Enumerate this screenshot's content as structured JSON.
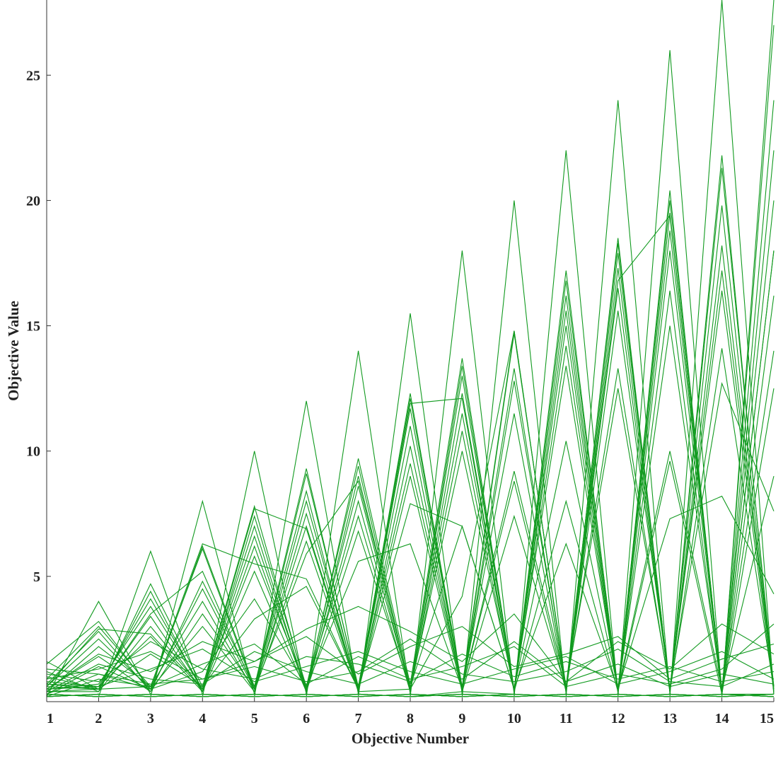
{
  "chart_data": {
    "type": "line",
    "title": "",
    "xlabel": "Objective Number",
    "ylabel": "Objective Value",
    "x": [
      1,
      2,
      3,
      4,
      5,
      6,
      7,
      8,
      9,
      10,
      11,
      12,
      13,
      14,
      15
    ],
    "xticks": [
      "1",
      "2",
      "3",
      "4",
      "5",
      "6",
      "7",
      "8",
      "9",
      "10",
      "11",
      "12",
      "13",
      "14",
      "15"
    ],
    "yticks": [
      "5",
      "10",
      "15",
      "20",
      "25"
    ],
    "ytick_values": [
      5,
      10,
      15,
      20,
      25
    ],
    "xlim": [
      1,
      15
    ],
    "ylim": [
      0,
      28
    ],
    "grid": false,
    "legend": "none",
    "line_color": "#119a1f",
    "series": [
      {
        "values": [
          0.2,
          4.0,
          0.3,
          0.2,
          0.3,
          0.2,
          0.3,
          0.2,
          0.4,
          0.3,
          0.2,
          0.3,
          0.2,
          0.3,
          0.2
        ]
      },
      {
        "values": [
          0.3,
          0.2,
          6.0,
          0.3,
          0.2,
          0.3,
          0.2,
          0.3,
          0.2,
          0.3,
          0.2,
          0.3,
          0.2,
          0.3,
          0.3
        ]
      },
      {
        "values": [
          0.2,
          0.3,
          0.2,
          8.0,
          0.3,
          0.2,
          0.3,
          0.2,
          0.3,
          0.2,
          0.3,
          0.2,
          0.3,
          0.2,
          0.3
        ]
      },
      {
        "values": [
          0.3,
          0.2,
          0.3,
          0.2,
          10.0,
          0.3,
          0.2,
          0.3,
          0.2,
          0.3,
          0.2,
          0.3,
          0.2,
          0.3,
          0.2
        ]
      },
      {
        "values": [
          0.2,
          0.3,
          0.2,
          0.3,
          0.2,
          12.0,
          0.3,
          0.2,
          0.3,
          0.2,
          0.3,
          0.2,
          0.3,
          0.2,
          0.3
        ]
      },
      {
        "values": [
          0.3,
          0.2,
          0.3,
          0.2,
          0.3,
          0.2,
          14.0,
          0.3,
          0.2,
          0.3,
          0.2,
          0.3,
          0.2,
          0.3,
          0.2
        ]
      },
      {
        "values": [
          0.2,
          0.3,
          0.2,
          0.3,
          0.2,
          0.3,
          0.2,
          15.5,
          0.3,
          0.2,
          0.3,
          0.2,
          0.3,
          0.2,
          0.3
        ]
      },
      {
        "values": [
          0.3,
          0.2,
          0.3,
          0.2,
          0.3,
          0.2,
          0.3,
          0.2,
          18.0,
          0.3,
          0.2,
          0.3,
          0.2,
          0.3,
          0.2
        ]
      },
      {
        "values": [
          0.2,
          0.3,
          0.2,
          0.3,
          0.2,
          0.3,
          0.2,
          0.3,
          0.2,
          20.0,
          0.3,
          0.2,
          0.3,
          0.2,
          0.3
        ]
      },
      {
        "values": [
          0.3,
          0.2,
          0.3,
          0.2,
          0.3,
          0.2,
          0.3,
          0.2,
          0.3,
          0.2,
          22.0,
          0.3,
          0.2,
          0.3,
          0.2
        ]
      },
      {
        "values": [
          0.2,
          0.3,
          0.2,
          0.3,
          0.2,
          0.3,
          0.2,
          0.3,
          0.2,
          0.3,
          0.2,
          24.0,
          0.3,
          0.2,
          0.3
        ]
      },
      {
        "values": [
          0.3,
          0.2,
          0.3,
          0.2,
          0.3,
          0.2,
          0.3,
          0.2,
          0.3,
          0.2,
          0.3,
          0.2,
          26.0,
          0.3,
          0.2
        ]
      },
      {
        "values": [
          0.2,
          0.3,
          0.2,
          0.3,
          0.2,
          0.3,
          0.2,
          0.3,
          0.2,
          0.3,
          0.2,
          0.3,
          0.2,
          28.0,
          0.3
        ]
      },
      {
        "values": [
          0.3,
          0.2,
          0.3,
          0.2,
          0.3,
          0.2,
          0.3,
          0.2,
          0.3,
          0.2,
          0.3,
          0.2,
          0.3,
          0.2,
          28.0
        ]
      },
      {
        "values": [
          1.5,
          3.2,
          0.5,
          6.2,
          0.6,
          9.3,
          0.5,
          12.3,
          0.6,
          14.8,
          0.5,
          18.5,
          0.4,
          21.8,
          0.3
        ]
      },
      {
        "values": [
          1.2,
          0.4,
          4.7,
          0.6,
          7.8,
          0.5,
          9.7,
          0.7,
          13.7,
          0.5,
          17.2,
          0.4,
          20.4,
          0.3,
          27.0
        ]
      },
      {
        "values": [
          0.9,
          3.0,
          0.6,
          6.1,
          0.5,
          9.1,
          0.6,
          12.1,
          0.5,
          14.7,
          0.6,
          18.3,
          0.4,
          21.3,
          0.6
        ]
      },
      {
        "values": [
          1.0,
          0.5,
          4.4,
          0.4,
          7.4,
          0.6,
          9.4,
          0.5,
          13.4,
          0.4,
          16.8,
          0.5,
          20.0,
          0.4,
          24.0
        ]
      },
      {
        "values": [
          0.7,
          2.8,
          0.4,
          4.8,
          0.6,
          8.4,
          0.4,
          11.7,
          0.5,
          13.3,
          0.4,
          17.9,
          0.5,
          19.8,
          0.4
        ]
      },
      {
        "values": [
          0.8,
          0.6,
          4.1,
          0.5,
          7.0,
          0.4,
          9.0,
          0.5,
          13.0,
          0.5,
          16.2,
          0.4,
          19.5,
          0.3,
          22.0
        ]
      },
      {
        "values": [
          0.6,
          2.5,
          0.5,
          4.5,
          0.5,
          8.0,
          0.5,
          11.0,
          0.4,
          12.8,
          0.5,
          17.3,
          0.4,
          18.2,
          0.5
        ]
      },
      {
        "values": [
          0.5,
          0.7,
          3.8,
          0.5,
          6.6,
          0.5,
          8.6,
          0.4,
          12.3,
          0.4,
          15.6,
          0.5,
          18.8,
          0.5,
          20.0
        ]
      },
      {
        "values": [
          0.4,
          2.2,
          0.6,
          4.0,
          0.4,
          7.5,
          0.4,
          10.2,
          0.5,
          11.5,
          0.4,
          16.5,
          0.4,
          17.2,
          0.6
        ]
      },
      {
        "values": [
          0.6,
          0.5,
          3.4,
          0.4,
          6.2,
          0.4,
          8.0,
          0.5,
          11.5,
          0.5,
          15.0,
          0.4,
          18.0,
          0.4,
          18.0
        ]
      },
      {
        "values": [
          0.5,
          1.8,
          0.4,
          3.5,
          0.5,
          7.0,
          0.5,
          9.5,
          0.5,
          8.8,
          0.4,
          15.6,
          0.5,
          16.4,
          0.4
        ]
      },
      {
        "values": [
          0.4,
          0.4,
          3.0,
          0.5,
          5.8,
          0.6,
          7.4,
          0.4,
          10.8,
          0.4,
          14.2,
          0.4,
          16.4,
          0.3,
          16.2
        ]
      },
      {
        "values": [
          0.3,
          1.4,
          0.5,
          3.0,
          0.4,
          6.4,
          0.4,
          9.0,
          0.4,
          7.4,
          0.5,
          13.3,
          0.4,
          14.1,
          0.5
        ]
      },
      {
        "values": [
          0.5,
          0.6,
          2.6,
          0.4,
          5.2,
          0.4,
          6.8,
          0.5,
          10.0,
          0.5,
          13.4,
          0.4,
          15.0,
          0.4,
          14.0
        ]
      },
      {
        "values": [
          1.6,
          0.5,
          0.6,
          6.3,
          5.5,
          4.9,
          0.5,
          11.9,
          12.1,
          0.4,
          8.0,
          0.4,
          9.6,
          0.3,
          12.5
        ]
      },
      {
        "values": [
          0.6,
          2.9,
          2.7,
          0.5,
          7.7,
          6.9,
          0.4,
          0.5,
          4.2,
          14.8,
          0.5,
          16.8,
          19.4,
          0.5,
          9.0
        ]
      },
      {
        "values": [
          0.4,
          0.5,
          3.5,
          5.2,
          0.5,
          5.9,
          8.8,
          0.6,
          7.0,
          0.5,
          10.4,
          0.5,
          7.3,
          8.2,
          4.3
        ]
      },
      {
        "values": [
          0.3,
          1.1,
          0.5,
          1.2,
          4.1,
          0.6,
          5.6,
          6.3,
          0.5,
          9.2,
          0.6,
          12.5,
          0.5,
          12.7,
          7.6
        ]
      },
      {
        "values": [
          0.7,
          0.5,
          1.9,
          0.6,
          3.3,
          4.6,
          0.5,
          7.9,
          7.0,
          0.5,
          6.3,
          0.5,
          10.0,
          0.5,
          18.0
        ]
      },
      {
        "values": [
          0.5,
          1.9,
          1.2,
          2.4,
          1.6,
          2.9,
          3.8,
          2.8,
          1.6,
          3.5,
          0.8,
          2.4,
          1.3,
          3.1,
          1.9
        ]
      },
      {
        "values": [
          0.9,
          1.3,
          2.0,
          0.9,
          1.6,
          2.6,
          1.1,
          2.2,
          3.0,
          1.4,
          1.9,
          2.6,
          0.9,
          1.7,
          2.3
        ]
      },
      {
        "values": [
          0.2,
          0.9,
          0.6,
          1.5,
          2.3,
          0.7,
          1.8,
          0.9,
          1.4,
          2.2,
          0.6,
          1.1,
          0.7,
          1.3,
          3.1
        ]
      },
      {
        "values": [
          1.1,
          0.8,
          2.4,
          1.3,
          0.9,
          1.8,
          1.5,
          0.8,
          1.9,
          1.0,
          1.6,
          0.9,
          1.4,
          0.8,
          1.2
        ]
      },
      {
        "values": [
          0.4,
          1.5,
          0.9,
          0.7,
          2.0,
          1.2,
          0.7,
          1.6,
          0.9,
          2.4,
          0.8,
          1.5,
          0.6,
          1.1,
          0.7
        ]
      },
      {
        "values": [
          0.7,
          0.6,
          1.3,
          2.1,
          0.8,
          1.4,
          2.0,
          1.2,
          0.7,
          1.3,
          1.8,
          0.7,
          1.2,
          2.0,
          0.9
        ]
      },
      {
        "values": [
          1.3,
          1.1,
          0.7,
          0.9,
          1.4,
          0.8,
          1.2,
          2.5,
          1.1,
          0.8,
          1.2,
          2.1,
          0.8,
          0.6,
          1.5
        ]
      }
    ]
  }
}
